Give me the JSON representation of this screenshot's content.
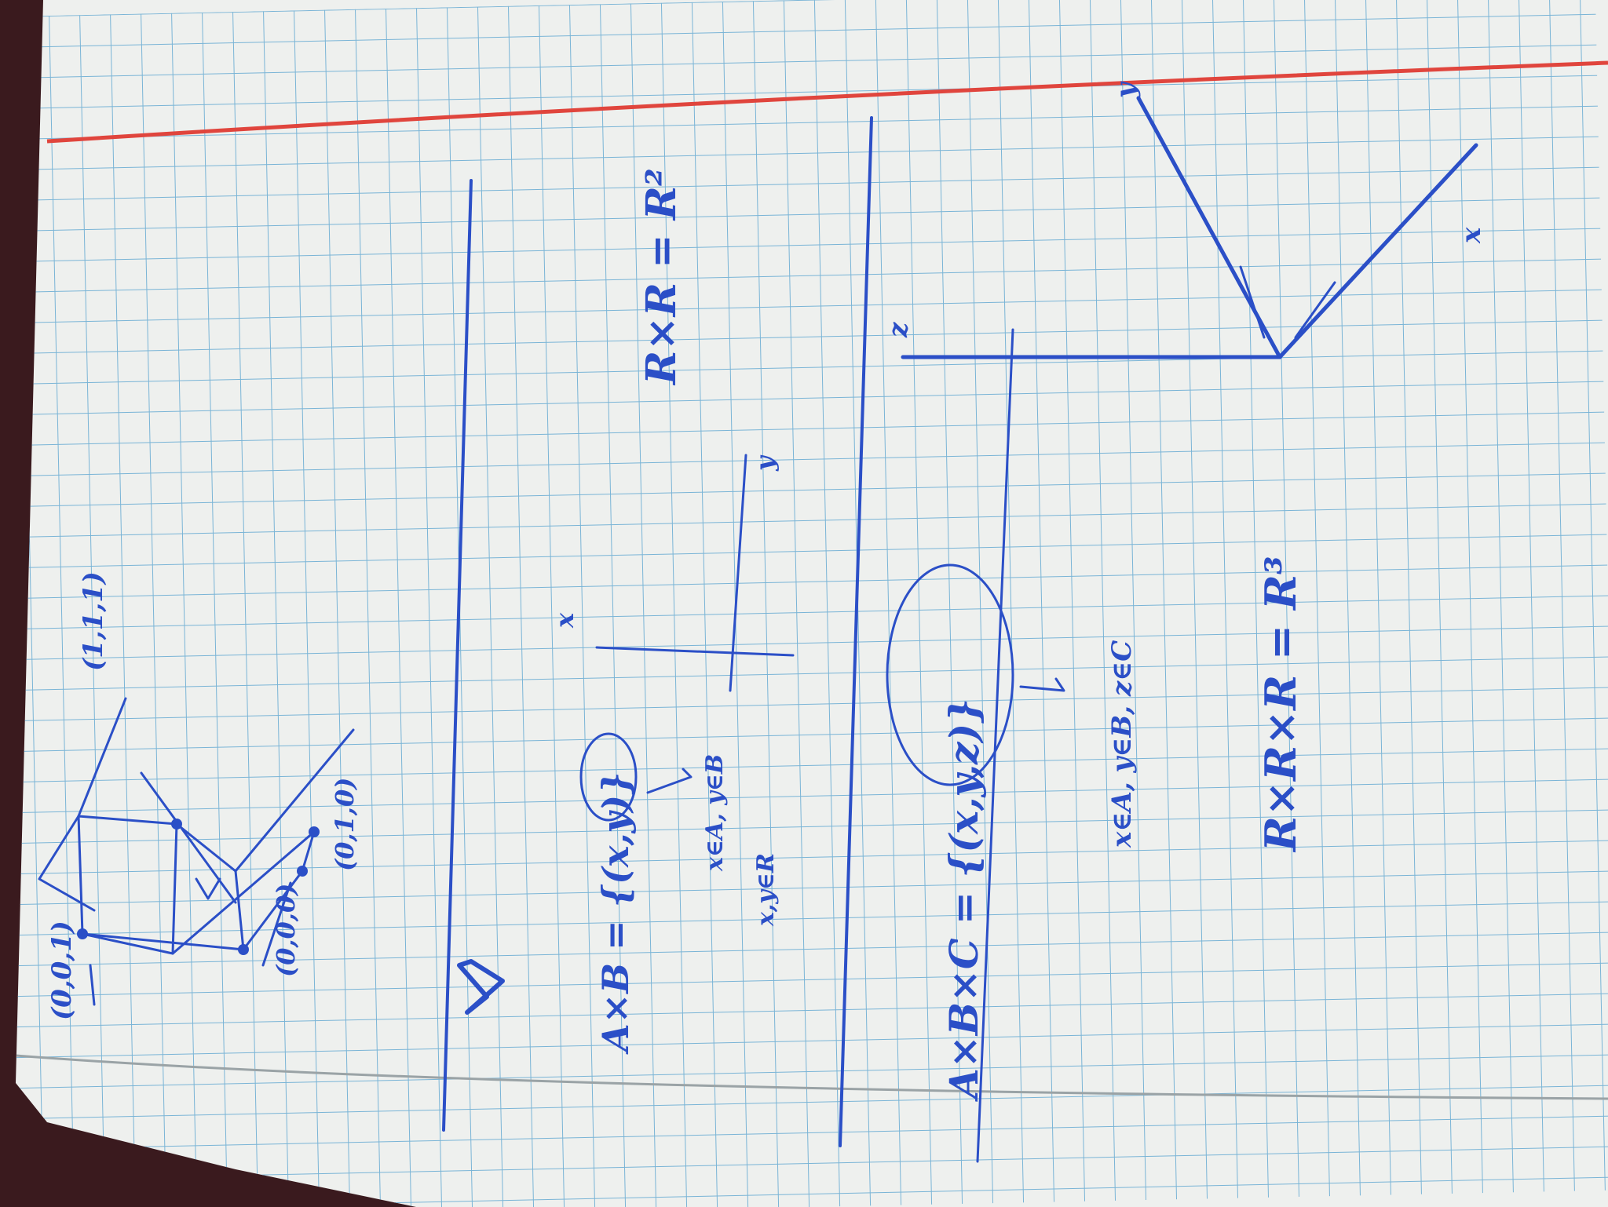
{
  "notebook": {
    "colors": {
      "paper": "#eef0ee",
      "grid": "#79b4d6",
      "margin_line": "#e0453d",
      "ink": "#2b4fc7",
      "background": "#3a1a1e"
    }
  },
  "cube_sketch": {
    "labels": {
      "point_001": "(0,0,1)",
      "point_111": "(1,1,1)",
      "point_010": "(0,1,0)",
      "point_000": "(0,0,0)"
    }
  },
  "section_two": {
    "formula": {
      "set_product": "A×B = {(x,y)}",
      "note_line_1": "x∈A, y∈B",
      "note_line_2": "x,y∈R",
      "plane": "R×R = R²"
    },
    "axes": {
      "x_label": "x",
      "y_label": "y"
    }
  },
  "section_three": {
    "formula": {
      "set_product": "A×B×C = {(x,y,z)}",
      "note_line_1": "x∈A, y∈B, z∈C",
      "space": "R×R×R = R³"
    },
    "axes": {
      "x_label": "x",
      "y_label": "y",
      "z_label": "z"
    }
  }
}
